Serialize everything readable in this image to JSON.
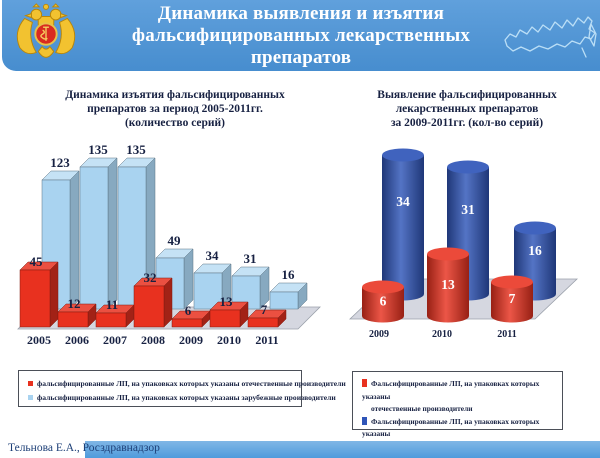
{
  "header": {
    "title_lines": [
      "Динамика выявления и изъятия",
      "фальсифицированных лекарственных",
      "препаратов"
    ]
  },
  "colors": {
    "header_bg": "#4a93d7",
    "footer_bar": "#4f9bdc",
    "text_navy": "#172142",
    "domestic_red": "#e8311f",
    "foreign_light_blue": "#a9d3f0",
    "foreign_royal_blue": "#2f55b8",
    "floor_gray": "#d5d7e0",
    "map_outline": "#badef6"
  },
  "left_chart": {
    "title_lines": [
      "Динамика изъятия фальсифицированных",
      "препаратов за период 2005-2011гг.",
      "(количество серий)"
    ],
    "legend": [
      {
        "color": "#e8311f",
        "label": "фальсифицированные ЛП, на упаковках которых указаны отечественные производители"
      },
      {
        "color": "#a9d3f0",
        "label": "фальсифицированные ЛП, на упаковках которых указаны зарубежные производители"
      }
    ]
  },
  "right_chart": {
    "title_lines": [
      "Выявление фальсифицированных",
      "лекарственных препаратов",
      "за 2009-2011гг. (кол-во серий)"
    ],
    "legend": [
      {
        "color": "#e8311f",
        "lines": [
          "Фальсифицированные ЛП, на упаковках которых указаны",
          "отечественные производители"
        ]
      },
      {
        "color": "#2f55b8",
        "lines": [
          "Фальсифицированные ЛП, на упаковках которых указаны",
          "зарубежные производители"
        ]
      }
    ]
  },
  "chart_data": [
    {
      "type": "bar",
      "style": "3d-bars",
      "title": "Динамика изъятия фальсифицированных препаратов за период 2005-2011гг. (количество серий)",
      "categories": [
        "2005",
        "2006",
        "2007",
        "2008",
        "2009",
        "2010",
        "2011"
      ],
      "series": [
        {
          "name": "фальсифицированные ЛП, на упаковках которых указаны отечественные производители",
          "color": "#e8311f",
          "values": [
            45,
            12,
            11,
            32,
            6,
            13,
            7
          ]
        },
        {
          "name": "фальсифицированные ЛП, на упаковках которых указаны зарубежные производители",
          "color": "#a9d3f0",
          "values": [
            123,
            135,
            135,
            49,
            34,
            31,
            16
          ]
        }
      ],
      "value_labels": true,
      "label_color": "#172142",
      "legend_position": "bottom",
      "ylim": [
        0,
        140
      ]
    },
    {
      "type": "bar",
      "style": "3d-cylinders",
      "title": "Выявление фальсифицированных лекарственных препаратов за 2009-2011гг. (кол-во серий)",
      "categories": [
        "2009",
        "2010",
        "2011"
      ],
      "series": [
        {
          "name": "Фальсифицированные ЛП, на упаковках которых указаны отечественные производители",
          "color": "#e8311f",
          "values": [
            6,
            13,
            7
          ]
        },
        {
          "name": "Фальсифицированные ЛП, на упаковках которых указаны зарубежные производители",
          "color": "#2f55b8",
          "values": [
            34,
            31,
            16
          ]
        }
      ],
      "value_labels": true,
      "label_color": "#ffffff",
      "legend_position": "bottom",
      "ylim": [
        0,
        36
      ]
    }
  ],
  "footer": {
    "text": "Тельнова Е.А., Росздравнадзор"
  }
}
